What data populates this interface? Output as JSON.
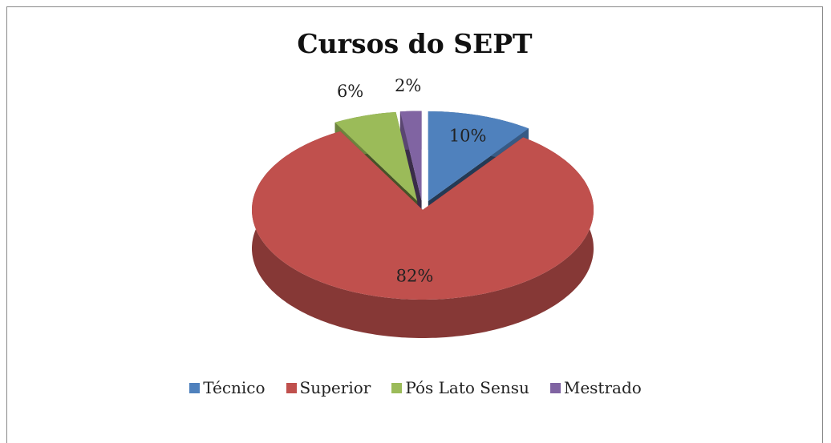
{
  "chart_data": {
    "type": "pie",
    "title": "Cursos do SEPT",
    "categories": [
      "Técnico",
      "Superior",
      "Pós Lato Sensu",
      "Mestrado"
    ],
    "values": [
      10,
      82,
      6,
      2
    ],
    "value_labels": [
      "10%",
      "82%",
      "6%",
      "2%"
    ],
    "colors": [
      "#4f81bd",
      "#c0504d",
      "#9bbb59",
      "#8064a2"
    ],
    "legend": "bottom"
  }
}
